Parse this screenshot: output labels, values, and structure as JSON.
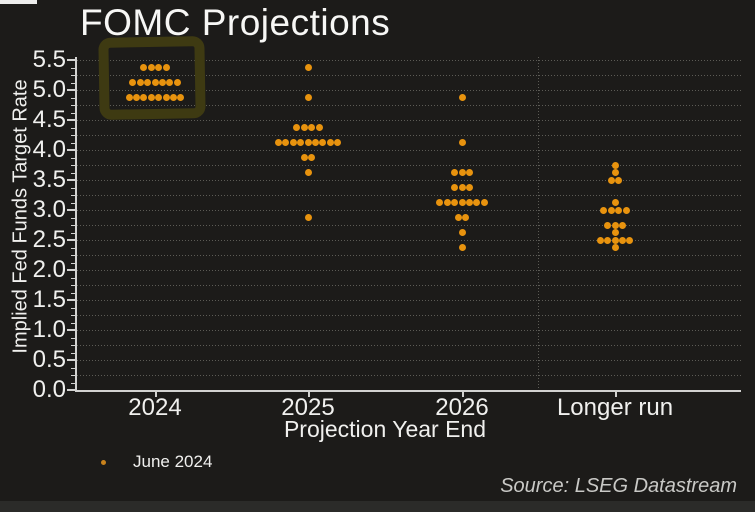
{
  "title": "FOMC Projections",
  "colors": {
    "background": "#1c1b19",
    "dot": "#e8930e",
    "legend_dot": "#c8821c",
    "grid": "#5c5b55",
    "axis": "#d2d2d0",
    "text": "#f0f0ee",
    "source_text": "#c9c9c6",
    "highlight_annotation": "#3e3a12",
    "footer_strip": "#2b2b29"
  },
  "chart_data": {
    "type": "scatter",
    "title": "FOMC Projections",
    "xlabel": "Projection Year End",
    "ylabel": "Implied Fed Funds Target Rate",
    "ylim": [
      0.0,
      5.5
    ],
    "ytick_labels": [
      "5.5",
      "5.0",
      "4.5",
      "4.0",
      "3.5",
      "3.0",
      "2.5",
      "2.0",
      "1.5",
      "1.0",
      "0.5",
      "0.0"
    ],
    "grid": "horizontal dotted lines every 0.25, dotted vertical separator before Longer run",
    "legend": {
      "label": "June 2024",
      "position": "bottom-left"
    },
    "series_name": "June 2024",
    "categories": [
      "2024",
      "2025",
      "2026",
      "Longer run"
    ],
    "columns": [
      {
        "label": "2024",
        "dots": [
          {
            "rate": 5.375,
            "count": 4
          },
          {
            "rate": 5.125,
            "count": 7
          },
          {
            "rate": 4.875,
            "count": 8
          }
        ]
      },
      {
        "label": "2025",
        "dots": [
          {
            "rate": 5.375,
            "count": 1
          },
          {
            "rate": 4.875,
            "count": 1
          },
          {
            "rate": 4.375,
            "count": 4
          },
          {
            "rate": 4.125,
            "count": 9
          },
          {
            "rate": 3.875,
            "count": 2
          },
          {
            "rate": 3.625,
            "count": 1
          },
          {
            "rate": 2.875,
            "count": 1
          }
        ]
      },
      {
        "label": "2026",
        "dots": [
          {
            "rate": 4.875,
            "count": 1
          },
          {
            "rate": 4.125,
            "count": 1
          },
          {
            "rate": 3.625,
            "count": 3
          },
          {
            "rate": 3.375,
            "count": 3
          },
          {
            "rate": 3.125,
            "count": 7
          },
          {
            "rate": 2.875,
            "count": 2
          },
          {
            "rate": 2.625,
            "count": 1
          },
          {
            "rate": 2.375,
            "count": 1
          }
        ]
      },
      {
        "label": "Longer run",
        "dots": [
          {
            "rate": 3.75,
            "count": 1
          },
          {
            "rate": 3.625,
            "count": 1
          },
          {
            "rate": 3.5,
            "count": 2
          },
          {
            "rate": 3.125,
            "count": 1
          },
          {
            "rate": 3.0,
            "count": 4
          },
          {
            "rate": 2.75,
            "count": 3
          },
          {
            "rate": 2.625,
            "count": 1
          },
          {
            "rate": 2.5,
            "count": 5
          },
          {
            "rate": 2.375,
            "count": 1
          }
        ]
      }
    ],
    "annotations": [
      {
        "type": "highlight-box",
        "around": "2024 dot cluster",
        "color": "#3e3a12"
      }
    ]
  },
  "source": {
    "text": "Source: LSEG Datastream"
  }
}
